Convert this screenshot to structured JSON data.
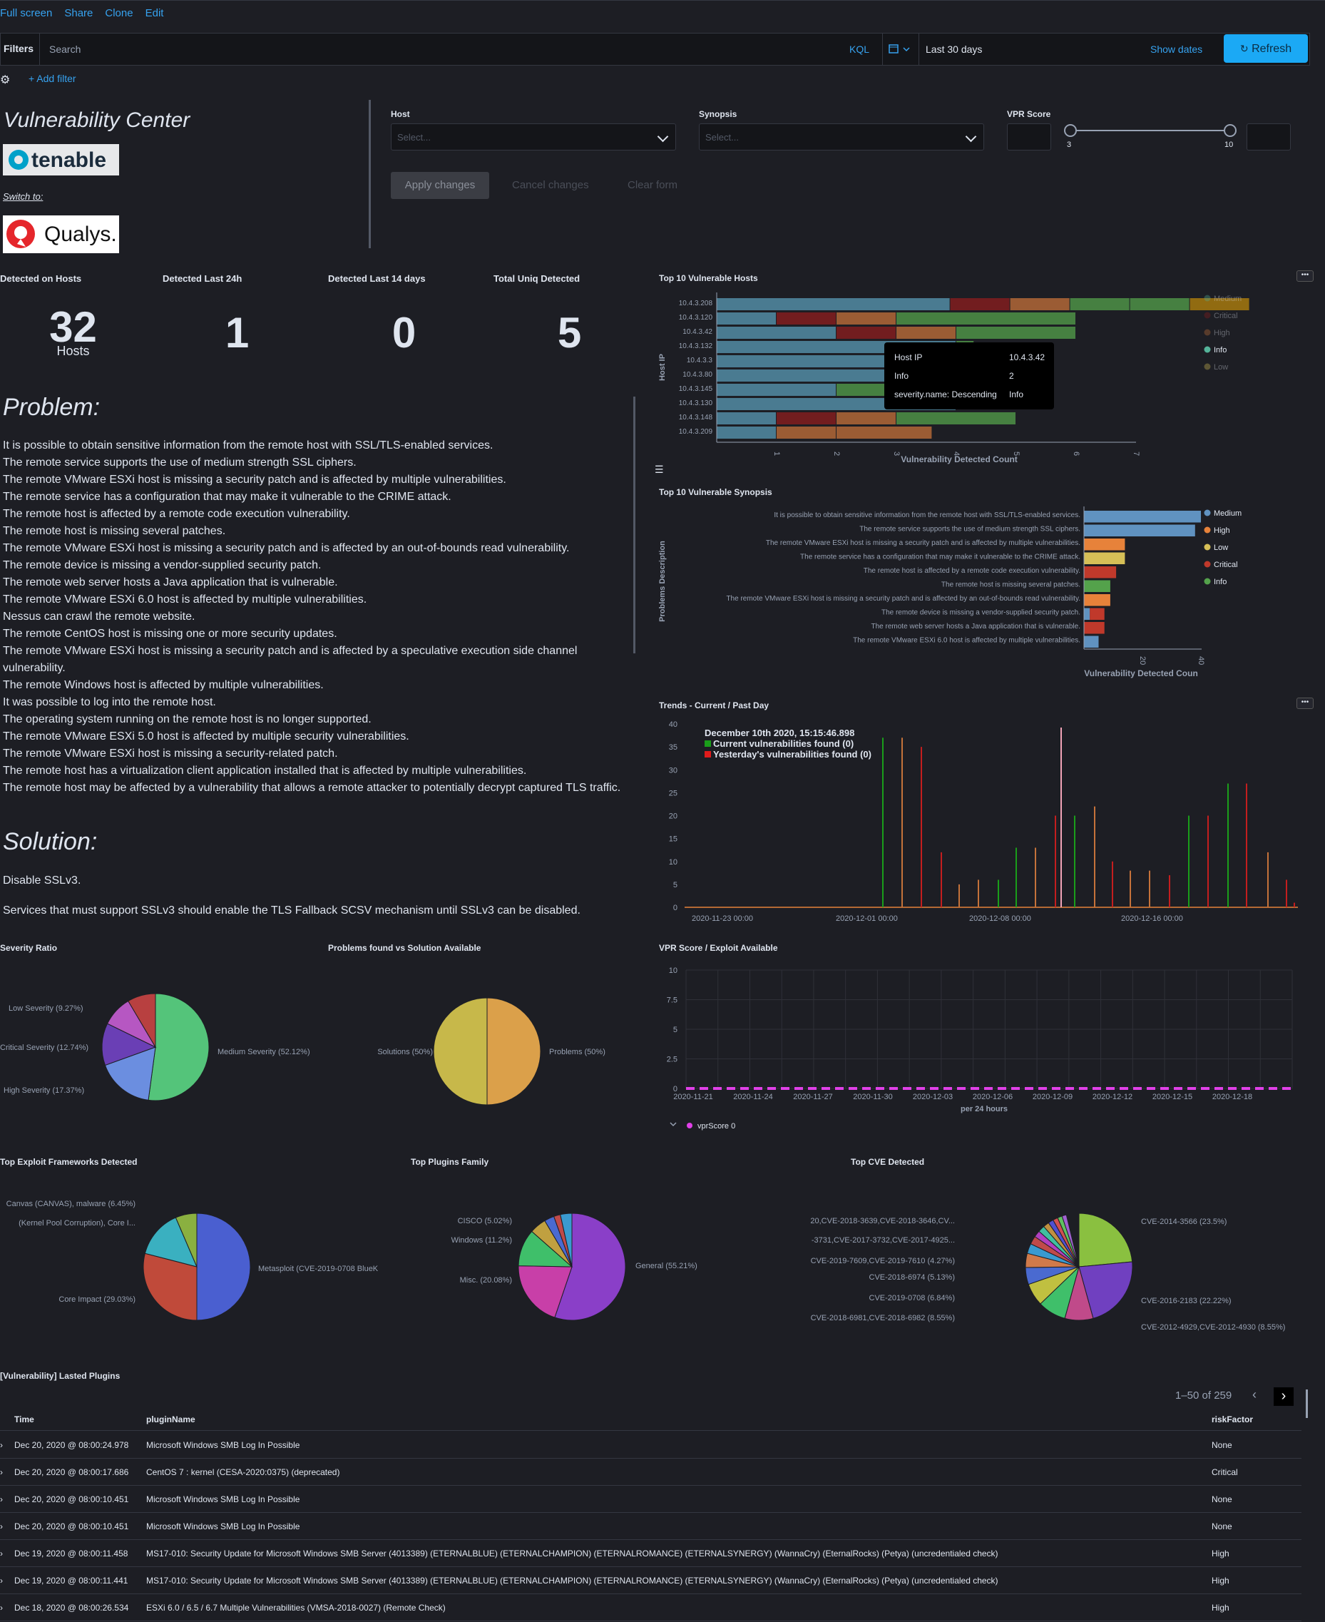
{
  "topnav": {
    "full_screen": "Full screen",
    "share": "Share",
    "clone": "Clone",
    "edit": "Edit"
  },
  "filterbar": {
    "filters_label": "Filters",
    "search_placeholder": "Search",
    "kql": "KQL",
    "date_range": "Last 30 days",
    "show_dates": "Show dates",
    "refresh": "Refresh",
    "add_filter": "+ Add filter"
  },
  "header": {
    "title": "Vulnerability Center",
    "switch_to": "Switch to:",
    "logo_tenable": "tenable",
    "logo_qualys": "Qualys."
  },
  "controls": {
    "host_label": "Host",
    "host_placeholder": "Select...",
    "synopsis_label": "Synopsis",
    "synopsis_placeholder": "Select...",
    "vpr_label": "VPR Score",
    "vpr_min": "3",
    "vpr_max": "10",
    "apply": "Apply changes",
    "cancel": "Cancel changes",
    "clear": "Clear form"
  },
  "metrics": [
    {
      "label": "Detected on Hosts",
      "value": "32",
      "sub": "Hosts"
    },
    {
      "label": "Detected Last 24h",
      "value": "1",
      "sub": ""
    },
    {
      "label": "Detected Last 14 days",
      "value": "0",
      "sub": ""
    },
    {
      "label": "Total Uniq Detected",
      "value": "5",
      "sub": ""
    }
  ],
  "problem": {
    "heading": "Problem:",
    "lines": [
      "It is possible to obtain sensitive information from the remote host with SSL/TLS-enabled services.",
      "The remote service supports the use of medium strength SSL ciphers.",
      "The remote VMware ESXi host is missing a security patch and is affected by multiple vulnerabilities.",
      "The remote service has a configuration that may make it vulnerable to the CRIME attack.",
      "The remote host is affected by a remote code execution vulnerability.",
      "The remote host is missing several patches.",
      "The remote VMware ESXi host is missing a security patch and is affected by an out-of-bounds read vulnerability.",
      "The remote device is missing a vendor-supplied security patch.",
      "The remote web server hosts a Java application that is vulnerable.",
      "The remote VMware ESXi 6.0 host is affected by multiple vulnerabilities.",
      "Nessus can crawl the remote website.",
      "The remote CentOS host is missing one or more security updates.",
      "The remote VMware ESXi host is missing a security patch and is affected by a speculative execution side channel vulnerability.",
      "The remote Windows host is affected by multiple vulnerabilities.",
      "It was possible to log into the remote host.",
      "The operating system running on the remote host is no longer supported.",
      "The remote VMware ESXi 5.0 host is affected by multiple security vulnerabilities.",
      "The remote VMware ESXi host is missing a security-related patch.",
      "The remote host has a virtualization client application installed that is affected by multiple vulnerabilities.",
      "The remote host may be affected by a vulnerability that allows a remote attacker to potentially decrypt captured TLS traffic."
    ]
  },
  "solution": {
    "heading": "Solution:",
    "line1": "Disable SSLv3.",
    "line2": "Services that must support SSLv3 should enable the TLS Fallback SCSV mechanism until SSLv3 can be disabled."
  },
  "top_hosts": {
    "title": "Top 10 Vulnerable Hosts",
    "ylabel": "Host IP",
    "xlabel": "Vulnerability Detected Count",
    "hosts": [
      "10.4.3.208",
      "10.4.3.120",
      "10.4.3.42",
      "10.4.3.132",
      "10.4.3.3",
      "10.4.3.80",
      "10.4.3.145",
      "10.4.3.130",
      "10.4.3.148",
      "10.4.3.209"
    ],
    "xticks": [
      "1",
      "2",
      "3",
      "4",
      "5",
      "6",
      "7"
    ],
    "legend": [
      {
        "name": "Medium",
        "color": "#54b399"
      },
      {
        "name": "Critical",
        "color": "#8f1d1d"
      },
      {
        "name": "High",
        "color": "#c5723a"
      },
      {
        "name": "Info",
        "color": "#54b399"
      },
      {
        "name": "Low",
        "color": "#d6bf57"
      }
    ],
    "tooltip": {
      "k1": "Host IP",
      "v1": "10.4.3.42",
      "k2": "Info",
      "v2": "2",
      "k3": "severity.name: Descending",
      "v3": "Info"
    }
  },
  "top_synopsis": {
    "title": "Top 10 Vulnerable Synopsis",
    "ylabel": "Problems Description",
    "xlabel": "Vulnerability Detected Coun",
    "rows": [
      "It is possible to obtain sensitive information from the remote host with SSL/TLS-enabled services.",
      "The remote service supports the use of medium strength SSL ciphers.",
      "The remote VMware ESXi host is missing a security patch and is affected by multiple vulnerabilities.",
      "The remote service has a configuration that may make it vulnerable to the CRIME attack.",
      "The remote host is affected by a remote code execution vulnerability.",
      "The remote host is missing several patches.",
      "The remote VMware ESXi host is missing a security patch and is affected by an out-of-bounds read vulnerability.",
      "The remote device is missing a vendor-supplied security patch.",
      "The remote web server hosts a Java application that is vulnerable.",
      "The remote VMware ESXi 6.0 host is affected by multiple vulnerabilities."
    ],
    "xticks": [
      "20",
      "40"
    ],
    "legend": [
      {
        "name": "Medium",
        "color": "#6092c0"
      },
      {
        "name": "High",
        "color": "#e7823a"
      },
      {
        "name": "Low",
        "color": "#d6bf57"
      },
      {
        "name": "Critical",
        "color": "#c0392b"
      },
      {
        "name": "Info",
        "color": "#54a24b"
      }
    ]
  },
  "trends": {
    "title": "Trends - Current / Past Day",
    "yticks": [
      "40",
      "35",
      "30",
      "25",
      "20",
      "15",
      "10",
      "5",
      "0"
    ],
    "xticks": [
      "2020-11-23 00:00",
      "2020-12-01 00:00",
      "2020-12-08 00:00",
      "2020-12-16 00:00"
    ],
    "tooltip_date": "December 10th 2020, 15:15:46.898",
    "tooltip_current": "Current vulnerabilities found (0)",
    "tooltip_yesterday": "Yesterday's vulnerabilities found (0)"
  },
  "severity_ratio": {
    "title": "Severity Ratio",
    "labels": [
      "Low Severity (9.27%)",
      "Critical Severity (12.74%)",
      "High Severity (17.37%)",
      "Medium Severity (52.12%)"
    ]
  },
  "problems_vs_solution": {
    "title": "Problems found vs Solution Available",
    "labels": [
      "Solutions (50%)",
      "Problems (50%)"
    ]
  },
  "vpr": {
    "title": "VPR Score / Exploit Available",
    "yticks": [
      "10",
      "7.5",
      "5",
      "2.5",
      "0"
    ],
    "xticks": [
      "2020-11-21",
      "2020-11-24",
      "2020-11-27",
      "2020-11-30",
      "2020-12-03",
      "2020-12-06",
      "2020-12-09",
      "2020-12-12",
      "2020-12-15",
      "2020-12-18"
    ],
    "xlabel": "per 24 hours",
    "legend": "vprScore 0"
  },
  "exploit_frameworks": {
    "title": "Top Exploit Frameworks Detected",
    "labels": [
      "Canvas (CANVAS), malware (6.45%)",
      "(Kernel Pool Corruption), Core I...",
      "Core Impact (29.03%)",
      "Metasploit (CVE-2019-0708 BlueK"
    ]
  },
  "plugins_family": {
    "title": "Top Plugins Family",
    "labels": [
      "CISCO (5.02%)",
      "Windows (11.2%)",
      "Misc. (20.08%)",
      "General (55.21%)"
    ]
  },
  "top_cve": {
    "title": "Top CVE Detected",
    "labels": [
      "20,CVE-2018-3639,CVE-2018-3646,CV...",
      "-3731,CVE-2017-3732,CVE-2017-4925...",
      "CVE-2019-7609,CVE-2019-7610 (4.27%)",
      "CVE-2018-6974 (5.13%)",
      "CVE-2019-0708 (6.84%)",
      "CVE-2018-6981,CVE-2018-6982 (8.55%)",
      "CVE-2014-3566 (23.5%)",
      "CVE-2016-2183 (22.22%)",
      "CVE-2012-4929,CVE-2012-4930 (8.55%)"
    ]
  },
  "plugins_table": {
    "title": "[Vulnerability] Lasted Plugins",
    "pagination": "1–50 of 259",
    "columns": [
      "Time",
      "pluginName",
      "riskFactor"
    ],
    "rows": [
      {
        "time": "Dec 20, 2020 @ 08:00:24.978",
        "name": "Microsoft Windows SMB Log In Possible",
        "risk": "None"
      },
      {
        "time": "Dec 20, 2020 @ 08:00:17.686",
        "name": "CentOS 7 : kernel (CESA-2020:0375) (deprecated)",
        "risk": "Critical"
      },
      {
        "time": "Dec 20, 2020 @ 08:00:10.451",
        "name": "Microsoft Windows SMB Log In Possible",
        "risk": "None"
      },
      {
        "time": "Dec 20, 2020 @ 08:00:10.451",
        "name": "Microsoft Windows SMB Log In Possible",
        "risk": "None"
      },
      {
        "time": "Dec 19, 2020 @ 08:00:11.458",
        "name": "MS17-010: Security Update for Microsoft Windows SMB Server (4013389) (ETERNALBLUE) (ETERNALCHAMPION) (ETERNALROMANCE) (ETERNALSYNERGY) (WannaCry) (EternalRocks) (Petya) (uncredentialed check)",
        "risk": "High"
      },
      {
        "time": "Dec 19, 2020 @ 08:00:11.441",
        "name": "MS17-010: Security Update for Microsoft Windows SMB Server (4013389) (ETERNALBLUE) (ETERNALCHAMPION) (ETERNALROMANCE) (ETERNALSYNERGY) (WannaCry) (EternalRocks) (Petya) (uncredentialed check)",
        "risk": "High"
      },
      {
        "time": "Dec 18, 2020 @ 08:00:26.534",
        "name": "ESXi 6.0 / 6.5 / 6.7 Multiple Vulnerabilities (VMSA-2018-0027) (Remote Check)",
        "risk": "High"
      }
    ]
  }
}
